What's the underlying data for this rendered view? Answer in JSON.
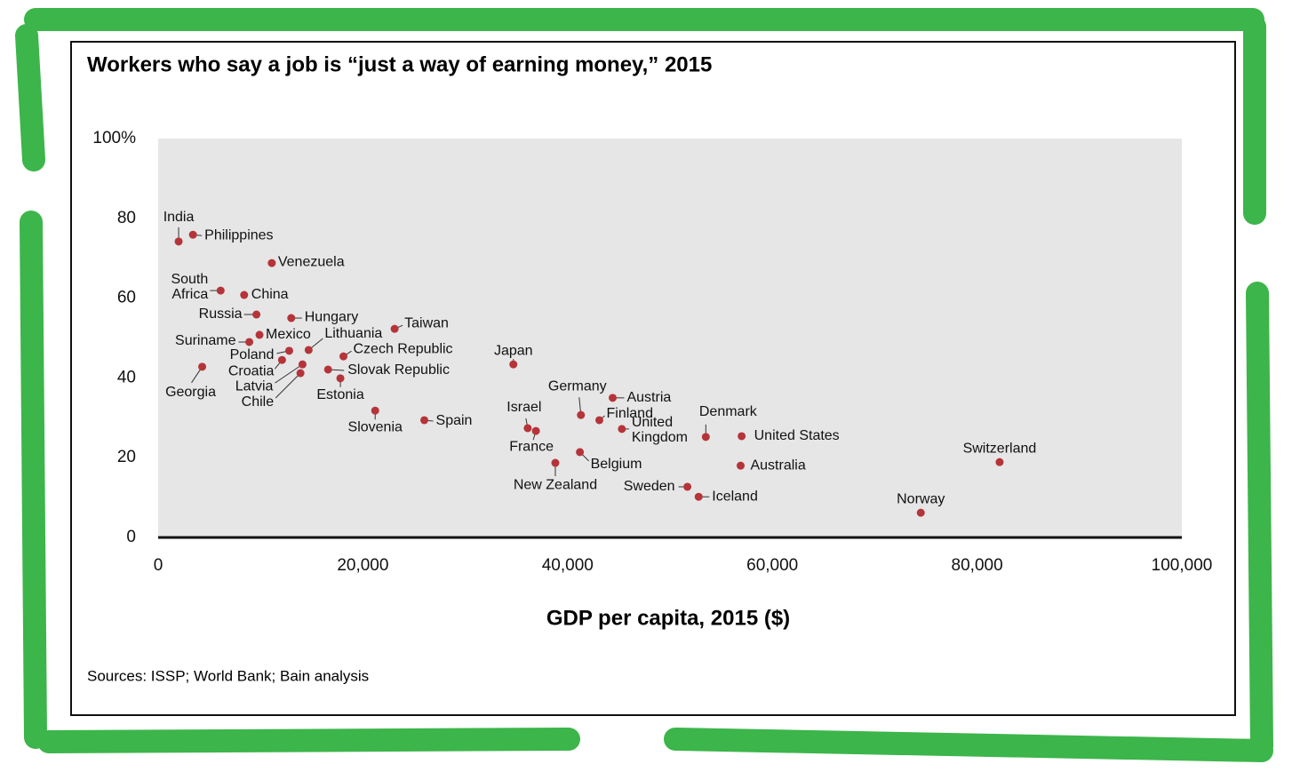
{
  "chart_data": {
    "type": "scatter",
    "title": "Workers who say a job is “just a way of earning money,” 2015",
    "x_label": "GDP per capita, 2015 ($)",
    "source": "Sources: ISSP; World Bank; Bain analysis",
    "color": "#b5343a",
    "xlim": [
      0,
      100000
    ],
    "xticks": [
      0,
      {
        "value": 20000,
        "label": "20,000"
      },
      {
        "value": 40000,
        "label": "40,000"
      },
      {
        "value": 60000,
        "label": "60,000"
      },
      {
        "value": 80000,
        "label": "80,000"
      },
      {
        "value": 100000,
        "label": "100,000"
      }
    ],
    "ylim": [
      0,
      100
    ],
    "yticks": [
      0,
      20,
      40,
      60,
      80,
      {
        "value": 100,
        "label": "100%"
      }
    ],
    "points": [
      {
        "name": "India",
        "x": 2000,
        "y": 74.2
      },
      {
        "name": "Philippines",
        "x": 3400,
        "y": 75.9
      },
      {
        "name": "Venezuela",
        "x": 11100,
        "y": 68.8
      },
      {
        "name": "South Africa",
        "x": 6100,
        "y": 61.9
      },
      {
        "name": "China",
        "x": 8400,
        "y": 60.8
      },
      {
        "name": "Russia",
        "x": 9600,
        "y": 55.9
      },
      {
        "name": "Hungary",
        "x": 13000,
        "y": 55.0
      },
      {
        "name": "Taiwan",
        "x": 23100,
        "y": 52.3
      },
      {
        "name": "Suriname",
        "x": 8900,
        "y": 49.0
      },
      {
        "name": "Mexico",
        "x": 9900,
        "y": 50.8
      },
      {
        "name": "Lithuania",
        "x": 14700,
        "y": 47.0
      },
      {
        "name": "Poland",
        "x": 12800,
        "y": 46.8
      },
      {
        "name": "Czech Republic",
        "x": 18100,
        "y": 45.4
      },
      {
        "name": "Croatia",
        "x": 12100,
        "y": 44.5
      },
      {
        "name": "Latvia",
        "x": 14100,
        "y": 43.4
      },
      {
        "name": "Chile",
        "x": 13900,
        "y": 41.2
      },
      {
        "name": "Slovak Republic",
        "x": 16600,
        "y": 42.1
      },
      {
        "name": "Georgia",
        "x": 4300,
        "y": 42.8
      },
      {
        "name": "Estonia",
        "x": 17800,
        "y": 39.9
      },
      {
        "name": "Japan",
        "x": 34700,
        "y": 43.4
      },
      {
        "name": "Slovenia",
        "x": 21200,
        "y": 31.8
      },
      {
        "name": "Spain",
        "x": 26000,
        "y": 29.4
      },
      {
        "name": "Israel",
        "x": 36100,
        "y": 27.4
      },
      {
        "name": "France",
        "x": 36900,
        "y": 26.7
      },
      {
        "name": "Germany",
        "x": 41300,
        "y": 30.7
      },
      {
        "name": "Austria",
        "x": 44400,
        "y": 35.0
      },
      {
        "name": "Finland",
        "x": 43100,
        "y": 29.4
      },
      {
        "name": "United Kingdom",
        "x": 45300,
        "y": 27.2
      },
      {
        "name": "Denmark",
        "x": 53500,
        "y": 25.2
      },
      {
        "name": "United States",
        "x": 57000,
        "y": 25.4
      },
      {
        "name": "Australia",
        "x": 56900,
        "y": 18.0
      },
      {
        "name": "Belgium",
        "x": 41200,
        "y": 21.4
      },
      {
        "name": "New Zealand",
        "x": 38800,
        "y": 18.7
      },
      {
        "name": "Sweden",
        "x": 51700,
        "y": 12.7
      },
      {
        "name": "Iceland",
        "x": 52800,
        "y": 10.2
      },
      {
        "name": "Norway",
        "x": 74500,
        "y": 6.2
      },
      {
        "name": "Switzerland",
        "x": 82200,
        "y": 18.9
      }
    ]
  }
}
